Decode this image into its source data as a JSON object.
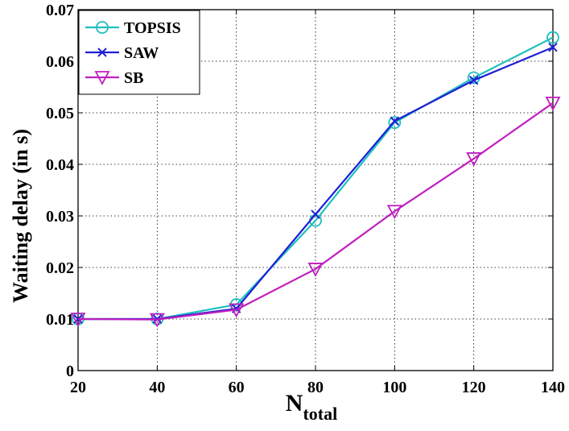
{
  "chart_data": {
    "type": "line",
    "xlabel": "N",
    "xlabel_sub": "total",
    "ylabel": "Waiting delay (in s)",
    "x": [
      20,
      40,
      60,
      80,
      100,
      120,
      140
    ],
    "xlim": [
      20,
      140
    ],
    "ylim": [
      0,
      0.07
    ],
    "xticks": [
      "20",
      "40",
      "60",
      "80",
      "100",
      "120",
      "140"
    ],
    "yticks": [
      "0",
      "0.01",
      "0.02",
      "0.03",
      "0.04",
      "0.05",
      "0.06",
      "0.07"
    ],
    "grid": true,
    "legend_position": "top-left",
    "series": [
      {
        "name": "TOPSIS",
        "color": "#1fbfbf",
        "marker": "circle",
        "values": [
          0.01,
          0.01,
          0.0128,
          0.0291,
          0.0481,
          0.0568,
          0.0646
        ]
      },
      {
        "name": "SAW",
        "color": "#1f1fd6",
        "marker": "x",
        "values": [
          0.01,
          0.01,
          0.012,
          0.0303,
          0.0484,
          0.0563,
          0.0627
        ]
      },
      {
        "name": "SB",
        "color": "#bf1fbf",
        "marker": "triangle-down",
        "values": [
          0.01,
          0.0099,
          0.0118,
          0.0197,
          0.0309,
          0.0411,
          0.0519
        ]
      }
    ]
  }
}
